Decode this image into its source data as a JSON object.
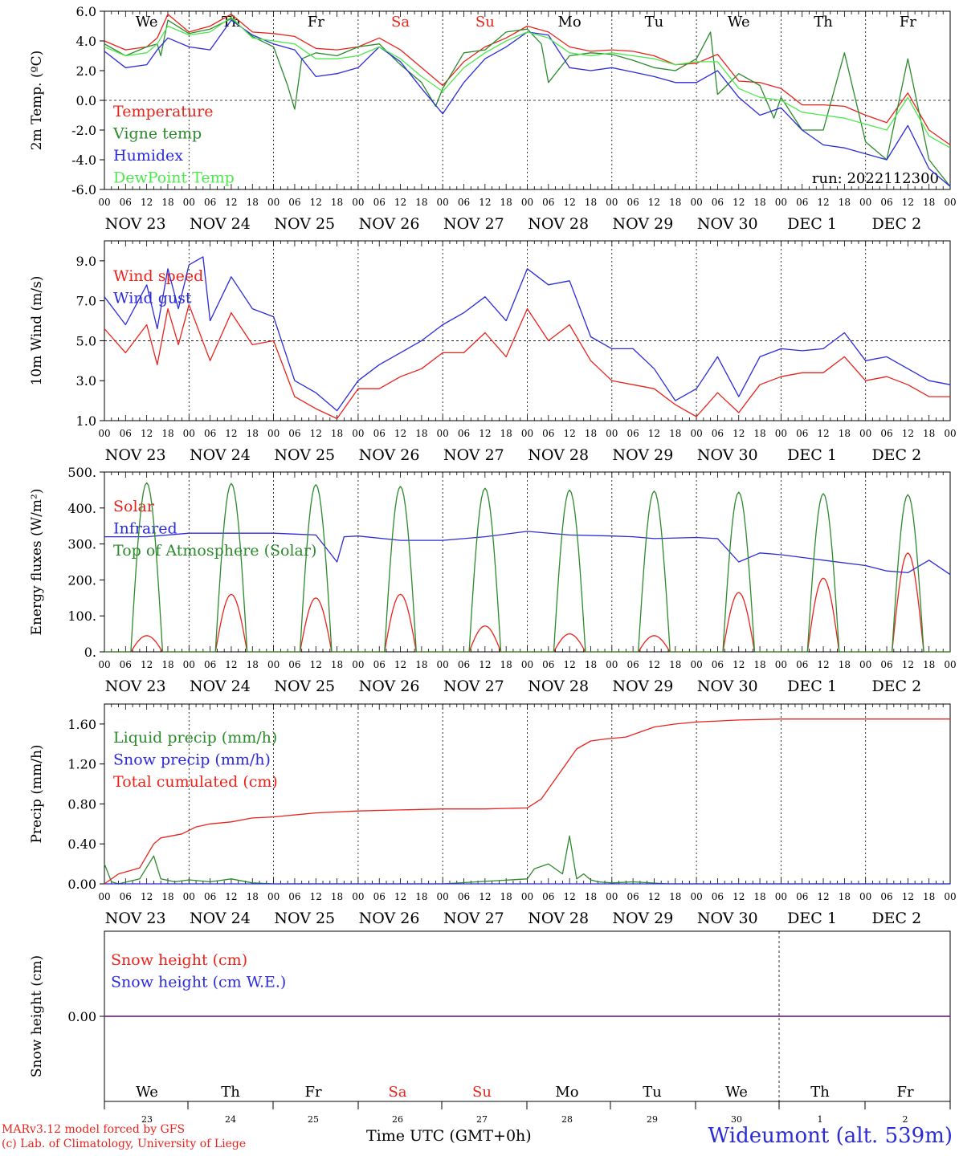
{
  "meta": {
    "model_line1": "MARv3.12 model forced by GFS",
    "model_line2": "(c) Lab. of Climatology, University of Liege",
    "xlabel": "Time UTC (GMT+0h)",
    "station": "Wideumont (alt. 539m)",
    "run_label": "run: 2022112300"
  },
  "days": {
    "hour_ticks": [
      "00",
      "06",
      "12",
      "18"
    ],
    "dates": [
      "NOV 23",
      "NOV 24",
      "NOV 25",
      "NOV 26",
      "NOV 27",
      "NOV 28",
      "NOV 29",
      "NOV 30",
      "DEC  1",
      "DEC  2"
    ],
    "weekdays": [
      "We",
      "Th",
      "Fr",
      "Sa",
      "Su",
      "Mo",
      "Tu",
      "We",
      "Th",
      "Fr"
    ],
    "weekday_colors": [
      "#000000",
      "#000000",
      "#000000",
      "#e8231c",
      "#e8231c",
      "#000000",
      "#000000",
      "#000000",
      "#000000",
      "#000000"
    ],
    "day_numbers": [
      "23",
      "24",
      "25",
      "26",
      "27",
      "28",
      "29",
      "30",
      "1",
      "2"
    ]
  },
  "chart_data": [
    {
      "id": "temp",
      "type": "line",
      "ylabel": "2m Temp. (ºC)",
      "ylim": [
        -6,
        6
      ],
      "yticks": [
        "6.0",
        "4.0",
        "2.0",
        "0.0",
        "-2.0",
        "-4.0",
        "-6.0"
      ],
      "ytick_values": [
        6,
        4,
        2,
        0,
        -2,
        -4,
        -6
      ],
      "ref_line": 0,
      "x_unit": "hours since NOV 23 00 UTC",
      "series": [
        {
          "name": "Temperature",
          "color": "#e8231c",
          "x": [
            0,
            6,
            12,
            15,
            18,
            24,
            30,
            36,
            42,
            48,
            54,
            60,
            66,
            72,
            78,
            84,
            90,
            96,
            102,
            108,
            114,
            120,
            126,
            132,
            138,
            144,
            150,
            156,
            162,
            168,
            174,
            180,
            186,
            192,
            198,
            204,
            210,
            216,
            222,
            228,
            234,
            240
          ],
          "y": [
            4.0,
            3.4,
            3.6,
            4.2,
            5.8,
            4.6,
            5.0,
            5.8,
            4.6,
            4.5,
            4.3,
            3.5,
            3.4,
            3.6,
            4.2,
            3.4,
            2.2,
            1.0,
            2.6,
            3.6,
            4.2,
            5.0,
            4.6,
            3.6,
            3.3,
            3.4,
            3.3,
            3.0,
            2.4,
            2.5,
            3.1,
            1.3,
            1.2,
            0.8,
            -0.3,
            -0.3,
            -0.4,
            -1.0,
            -1.5,
            0.5,
            -2.0,
            -3.0
          ]
        },
        {
          "name": "Vigne temp",
          "color": "#2c8a2c",
          "x": [
            0,
            6,
            12,
            15,
            16,
            18,
            24,
            30,
            36,
            42,
            48,
            52,
            54,
            56,
            60,
            66,
            72,
            78,
            84,
            90,
            94,
            96,
            102,
            108,
            114,
            120,
            124,
            126,
            132,
            138,
            144,
            150,
            156,
            162,
            168,
            172,
            174,
            180,
            186,
            190,
            192,
            198,
            204,
            210,
            216,
            222,
            228,
            234,
            240
          ],
          "y": [
            3.8,
            3.0,
            3.6,
            3.8,
            3.0,
            5.4,
            4.5,
            4.8,
            5.5,
            4.3,
            3.6,
            1.0,
            -0.6,
            2.8,
            3.2,
            3.0,
            3.6,
            3.8,
            2.4,
            1.2,
            -0.4,
            0.8,
            3.2,
            3.4,
            4.6,
            4.8,
            3.8,
            1.2,
            3.0,
            3.2,
            3.1,
            2.7,
            2.2,
            2.0,
            2.8,
            4.6,
            0.4,
            1.8,
            1.0,
            -1.2,
            0.2,
            -2.0,
            -2.0,
            3.2,
            -2.8,
            -4.0,
            2.8,
            -4.0,
            -5.8
          ]
        },
        {
          "name": "Humidex",
          "color": "#2b2bd9",
          "x": [
            0,
            6,
            12,
            15,
            18,
            24,
            30,
            36,
            42,
            48,
            54,
            60,
            66,
            72,
            78,
            84,
            90,
            96,
            102,
            108,
            114,
            120,
            126,
            132,
            138,
            144,
            150,
            156,
            162,
            168,
            174,
            180,
            186,
            192,
            198,
            204,
            210,
            216,
            222,
            228,
            234,
            240
          ],
          "y": [
            3.3,
            2.2,
            2.4,
            3.4,
            4.2,
            3.6,
            3.4,
            5.4,
            4.4,
            3.8,
            3.4,
            1.6,
            1.8,
            2.2,
            3.6,
            2.6,
            0.8,
            -0.9,
            1.2,
            2.8,
            3.6,
            4.6,
            4.4,
            2.2,
            2.0,
            2.2,
            1.9,
            1.6,
            1.2,
            1.2,
            2.0,
            0.2,
            -1.0,
            -0.5,
            -2.0,
            -3.0,
            -3.2,
            -3.6,
            -4.0,
            -1.7,
            -4.6,
            -5.8
          ]
        },
        {
          "name": "DewPoint Temp",
          "color": "#4de84d",
          "x": [
            0,
            6,
            12,
            15,
            18,
            24,
            30,
            36,
            42,
            48,
            54,
            60,
            66,
            72,
            78,
            84,
            90,
            96,
            102,
            108,
            114,
            120,
            126,
            132,
            138,
            144,
            150,
            156,
            162,
            168,
            174,
            180,
            186,
            192,
            198,
            204,
            210,
            216,
            222,
            228,
            234,
            240
          ],
          "y": [
            3.6,
            3.0,
            3.2,
            3.8,
            5.0,
            4.4,
            4.6,
            5.6,
            4.2,
            4.0,
            3.8,
            2.8,
            2.8,
            3.0,
            3.6,
            2.8,
            1.6,
            0.6,
            2.2,
            3.2,
            4.0,
            4.6,
            4.2,
            3.2,
            3.0,
            3.2,
            3.0,
            2.8,
            2.4,
            2.6,
            2.6,
            0.8,
            0.2,
            0.0,
            -0.8,
            -1.0,
            -1.2,
            -1.6,
            -2.0,
            0.2,
            -2.4,
            -3.2
          ]
        }
      ]
    },
    {
      "id": "wind",
      "type": "line",
      "ylabel": "10m Wind (m/s)",
      "ylim": [
        1.0,
        10.0
      ],
      "yticks": [
        "9.0",
        "7.0",
        "5.0",
        "3.0",
        "1.0"
      ],
      "ytick_values": [
        9,
        7,
        5,
        3,
        1
      ],
      "ref_line": 5,
      "x_unit": "hours since NOV 23 00 UTC",
      "series": [
        {
          "name": "Wind speed",
          "color": "#e8231c",
          "x": [
            0,
            6,
            12,
            15,
            18,
            21,
            24,
            30,
            36,
            42,
            48,
            54,
            60,
            66,
            72,
            78,
            84,
            90,
            96,
            102,
            108,
            114,
            120,
            126,
            132,
            138,
            144,
            150,
            156,
            162,
            168,
            174,
            180,
            186,
            192,
            198,
            204,
            210,
            216,
            222,
            228,
            234,
            240
          ],
          "y": [
            5.6,
            4.4,
            5.8,
            3.8,
            6.6,
            4.8,
            6.8,
            4.0,
            6.4,
            4.8,
            5.0,
            2.2,
            1.6,
            1.1,
            2.6,
            2.6,
            3.2,
            3.6,
            4.4,
            4.4,
            5.4,
            4.2,
            6.6,
            5.0,
            5.8,
            4.0,
            3.0,
            2.8,
            2.6,
            1.8,
            1.2,
            2.4,
            1.4,
            2.8,
            3.2,
            3.4,
            3.4,
            4.2,
            3.0,
            3.2,
            2.8,
            2.2,
            2.2
          ]
        },
        {
          "name": "Wind gust",
          "color": "#2b2bd9",
          "x": [
            0,
            6,
            12,
            15,
            18,
            21,
            24,
            28,
            30,
            36,
            42,
            48,
            54,
            60,
            66,
            72,
            78,
            84,
            90,
            96,
            102,
            108,
            114,
            120,
            126,
            132,
            138,
            144,
            150,
            156,
            162,
            168,
            174,
            180,
            186,
            192,
            198,
            204,
            210,
            216,
            222,
            228,
            234,
            240
          ],
          "y": [
            7.2,
            5.8,
            7.8,
            5.6,
            8.6,
            6.6,
            8.8,
            9.2,
            6.0,
            8.2,
            6.6,
            6.2,
            3.0,
            2.4,
            1.5,
            3.0,
            3.8,
            4.4,
            5.0,
            5.8,
            6.4,
            7.2,
            6.0,
            8.6,
            7.8,
            8.0,
            5.2,
            4.6,
            4.6,
            3.6,
            2.0,
            2.6,
            4.2,
            2.2,
            4.2,
            4.6,
            4.5,
            4.6,
            5.4,
            4.0,
            4.2,
            3.6,
            3.0,
            2.8
          ]
        }
      ]
    },
    {
      "id": "energy",
      "type": "line",
      "ylabel": "Energy fluxes (W/m²)",
      "ylim": [
        0,
        500
      ],
      "yticks": [
        "500.",
        "400.",
        "300.",
        "200.",
        "100.",
        "0."
      ],
      "ytick_values": [
        500,
        400,
        300,
        200,
        100,
        0
      ],
      "ref_line": null,
      "x_unit": "hours since NOV 23 00 UTC",
      "series": [
        {
          "name": "Solar",
          "color": "#e8231c",
          "diurnal": true,
          "peaks": [
            45,
            160,
            150,
            160,
            72,
            50,
            45,
            165,
            205,
            275
          ]
        },
        {
          "name": "Infrared",
          "color": "#2b2bd9",
          "x": [
            0,
            12,
            24,
            36,
            48,
            60,
            66,
            68,
            72,
            84,
            96,
            108,
            120,
            132,
            144,
            150,
            156,
            168,
            174,
            180,
            186,
            192,
            204,
            216,
            222,
            228,
            234,
            240
          ],
          "y": [
            320,
            320,
            330,
            330,
            330,
            325,
            250,
            320,
            322,
            310,
            310,
            320,
            335,
            325,
            322,
            320,
            315,
            318,
            315,
            250,
            275,
            270,
            255,
            240,
            225,
            220,
            255,
            215
          ]
        },
        {
          "name": "Top of Atmosphere (Solar)",
          "color": "#2c8a2c",
          "diurnal": true,
          "peaks": [
            470,
            468,
            465,
            460,
            455,
            450,
            447,
            444,
            440,
            437
          ]
        }
      ]
    },
    {
      "id": "precip",
      "type": "line",
      "ylabel": "Precip (mm/h)",
      "ylim": [
        0,
        1.8
      ],
      "yticks": [
        "1.60",
        "1.20",
        "0.80",
        "0.40",
        "0.00"
      ],
      "ytick_values": [
        1.6,
        1.2,
        0.8,
        0.4,
        0.0
      ],
      "ref_line": null,
      "x_unit": "hours since NOV 23 00 UTC",
      "series": [
        {
          "name": "Liquid precip (mm/h)",
          "color": "#2c8a2c",
          "x": [
            0,
            2,
            4,
            10,
            14,
            16,
            20,
            24,
            30,
            36,
            42,
            48,
            72,
            96,
            120,
            122,
            126,
            130,
            132,
            134,
            136,
            138,
            140,
            144,
            150,
            160,
            240
          ],
          "y": [
            0.2,
            0.02,
            0.0,
            0.05,
            0.28,
            0.05,
            0.02,
            0.04,
            0.02,
            0.05,
            0.01,
            0.0,
            0.0,
            0.0,
            0.05,
            0.15,
            0.2,
            0.1,
            0.48,
            0.05,
            0.1,
            0.04,
            0.02,
            0.01,
            0.02,
            0.0,
            0.0
          ]
        },
        {
          "name": "Snow precip (mm/h)",
          "color": "#2b2bd9",
          "x": [
            0,
            240
          ],
          "y": [
            0,
            0
          ]
        },
        {
          "name": "Total cumulated (cm)",
          "color": "#e8231c",
          "x": [
            0,
            4,
            10,
            14,
            16,
            22,
            26,
            30,
            36,
            42,
            48,
            60,
            72,
            84,
            96,
            108,
            120,
            124,
            128,
            130,
            134,
            138,
            142,
            148,
            156,
            162,
            168,
            180,
            192,
            216,
            240
          ],
          "y": [
            0.0,
            0.1,
            0.16,
            0.4,
            0.46,
            0.5,
            0.57,
            0.6,
            0.62,
            0.66,
            0.67,
            0.71,
            0.73,
            0.74,
            0.75,
            0.75,
            0.76,
            0.85,
            1.05,
            1.15,
            1.35,
            1.43,
            1.45,
            1.47,
            1.57,
            1.6,
            1.62,
            1.64,
            1.65,
            1.65,
            1.65
          ]
        }
      ]
    },
    {
      "id": "snow",
      "type": "line",
      "ylabel": "Snow height (cm)",
      "ylim": [
        -1,
        1
      ],
      "yticks": [
        "0.00"
      ],
      "ytick_values": [
        0
      ],
      "ref_line": null,
      "x_unit": "hours since NOV 23 00 UTC",
      "series": [
        {
          "name": "Snow height (cm)",
          "color": "#e8231c",
          "x": [
            0,
            240
          ],
          "y": [
            0,
            0
          ]
        },
        {
          "name": "Snow height (cm W.E.)",
          "color": "#2b2bd9",
          "x": [
            0,
            240
          ],
          "y": [
            0,
            0
          ]
        }
      ]
    }
  ],
  "colors": {
    "axis": "#000000",
    "red": "#e8231c",
    "green": "#2c8a2c",
    "blue": "#2b2bd9",
    "lightgreen": "#4de84d",
    "snowline": "#7a2a8a"
  }
}
